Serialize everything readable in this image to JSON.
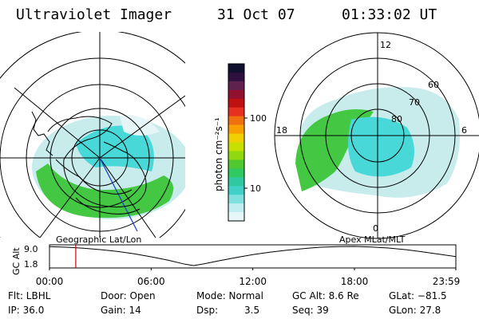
{
  "header": {
    "title": "Ultraviolet Imager",
    "date": "31 Oct 07",
    "time": "01:33:02 UT"
  },
  "colors": {
    "aurora_green": "#44c844",
    "aurora_cyan": "#48d8d8",
    "aurora_pale": "#c8ecec",
    "grid": "#000000",
    "cursor": "#cc0000",
    "longitude_blue": "#2244cc"
  },
  "left_map": {
    "label": "Geographic Lat/Lon"
  },
  "right_map": {
    "label": "Apex MLat/MLT",
    "mlt_labels": [
      "12",
      "18",
      "6",
      "0"
    ],
    "mlat_labels": [
      "60",
      "70",
      "80"
    ]
  },
  "colorbar": {
    "unit_label": "photon cm⁻²s⁻¹",
    "ticks": [
      "100",
      "10"
    ],
    "colors": [
      "#101030",
      "#301040",
      "#602050",
      "#901030",
      "#c01010",
      "#e83020",
      "#f07010",
      "#f8a000",
      "#f0d000",
      "#c8e000",
      "#90d810",
      "#50c830",
      "#30c860",
      "#30c8a0",
      "#40d0c8",
      "#80e0e0",
      "#c0eef0",
      "#e6f6f8"
    ]
  },
  "chart_data": {
    "type": "line",
    "title": "",
    "ylabel": "GC Alt",
    "yticks": [
      "9.0",
      "1.8"
    ],
    "ylim": [
      1.8,
      9.0
    ],
    "xticks": [
      "00:00",
      "06:00",
      "12:00",
      "18:00",
      "23:59"
    ],
    "xlim_hours": [
      0,
      23.983
    ],
    "cursor_hours": 1.55,
    "series": [
      {
        "x": [
          0,
          1,
          2,
          3,
          4,
          5,
          6,
          7,
          8,
          8.5,
          9,
          10,
          11,
          12,
          13,
          14,
          15,
          16,
          17,
          18,
          19,
          20,
          21,
          22,
          23,
          23.983
        ],
        "y": [
          8.9,
          8.7,
          8.3,
          7.8,
          7.1,
          6.2,
          5.1,
          3.8,
          2.3,
          1.8,
          2.3,
          3.6,
          4.8,
          5.9,
          6.8,
          7.6,
          8.2,
          8.7,
          8.9,
          9.0,
          8.8,
          8.4,
          7.8,
          7.0,
          6.1,
          5.2
        ]
      }
    ]
  },
  "status": {
    "flt": "Flt: LBHL",
    "door": "Door: Open",
    "mode": "Mode: Normal",
    "gcalt": "GC Alt: 8.6 Re",
    "glat": "GLat: −81.5",
    "ip": "IP: 36.0",
    "gain": "Gain: 14",
    "dsp_label": "Dsp:",
    "dsp_value": "3.5",
    "seq": "Seq: 39",
    "glon": "GLon:  27.8"
  }
}
